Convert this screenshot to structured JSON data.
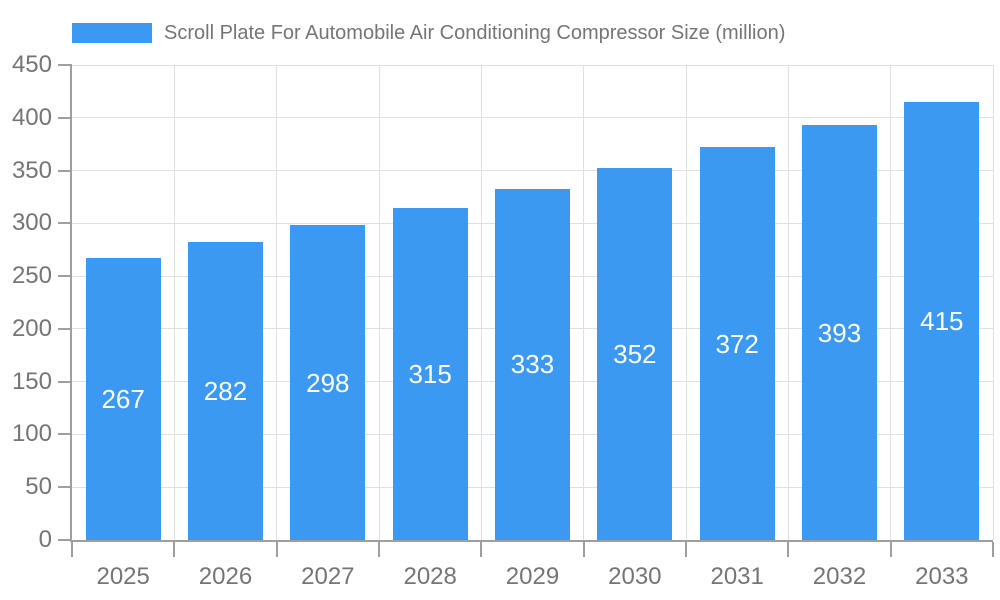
{
  "chart_data": {
    "type": "bar",
    "title": "Scroll Plate For Automobile Air Conditioning Compressor Size (million)",
    "legend": {
      "label": "Scroll Plate For Automobile Air Conditioning Compressor Size (million)",
      "position": "top"
    },
    "categories": [
      "2025",
      "2026",
      "2027",
      "2028",
      "2029",
      "2030",
      "2031",
      "2032",
      "2033"
    ],
    "values": [
      267,
      282,
      298,
      315,
      333,
      352,
      372,
      393,
      415
    ],
    "xlabel": "",
    "ylabel": "",
    "ylim": [
      0,
      450
    ],
    "yticks": [
      0,
      50,
      100,
      150,
      200,
      250,
      300,
      350,
      400,
      450
    ],
    "grid": true,
    "value_label_position": "inside-center",
    "colors": {
      "bar": "#3B99F2",
      "value_label": "#FFFFFF",
      "axis_text": "#757575",
      "legend_text": "#757575",
      "grid_line": "#E0E0E0",
      "axis_line": "#9E9E9E",
      "background": "#FFFFFF"
    }
  }
}
